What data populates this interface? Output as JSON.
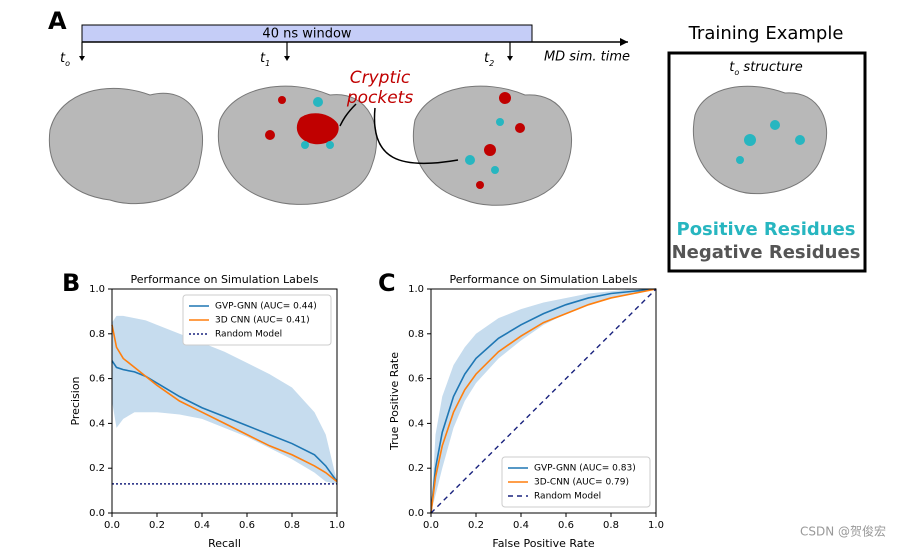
{
  "panel_a": {
    "label": "A",
    "window": "40 ns window",
    "t0": {
      "main": "t",
      "sub": "o"
    },
    "t1": {
      "main": "t",
      "sub": "1"
    },
    "t2": {
      "main": "t",
      "sub": "2"
    },
    "axis": "MD sim. time",
    "callout": [
      "Cryptic",
      "pockets"
    ],
    "training": {
      "title": "Training Example",
      "structure": {
        "main": "t",
        "sub": "o",
        "rest": " structure"
      },
      "positive": "Positive Residues",
      "negative": "Negative Residues"
    }
  },
  "watermark": "CSDN @贺俊宏",
  "chart_data": [
    {
      "type": "line",
      "panel": "B",
      "title": "Performance on Simulation Labels",
      "xlabel": "Recall",
      "ylabel": "Precision",
      "xlim": [
        0,
        1
      ],
      "ylim": [
        0,
        1
      ],
      "xticks": [
        {
          "value": 0,
          "label": "0.0"
        },
        {
          "value": 0.2,
          "label": "0.2"
        },
        {
          "value": 0.4,
          "label": "0.4"
        },
        {
          "value": 0.6,
          "label": "0.6"
        },
        {
          "value": 0.8,
          "label": "0.8"
        },
        {
          "value": 1,
          "label": "1.0"
        }
      ],
      "yticks": [
        {
          "value": 0,
          "label": "0.0"
        },
        {
          "value": 0.2,
          "label": "0.2"
        },
        {
          "value": 0.4,
          "label": "0.4"
        },
        {
          "value": 0.6,
          "label": "0.6"
        },
        {
          "value": 0.8,
          "label": "0.8"
        },
        {
          "value": 1,
          "label": "1.0"
        }
      ],
      "legend": "upper right",
      "band_color": "#c6dcee",
      "band_x": [
        0,
        0.02,
        0.05,
        0.1,
        0.15,
        0.2,
        0.3,
        0.4,
        0.5,
        0.6,
        0.7,
        0.8,
        0.9,
        0.95,
        1
      ],
      "band_upper": [
        0.85,
        0.88,
        0.88,
        0.87,
        0.86,
        0.84,
        0.8,
        0.76,
        0.72,
        0.67,
        0.62,
        0.56,
        0.45,
        0.35,
        0.14
      ],
      "band_lower": [
        0.5,
        0.38,
        0.42,
        0.45,
        0.45,
        0.45,
        0.44,
        0.42,
        0.38,
        0.34,
        0.29,
        0.24,
        0.18,
        0.14,
        0.13
      ],
      "series": [
        {
          "name": "GVP-GNN (AUC= 0.44)",
          "color": "#1f77b4",
          "x": [
            0,
            0.02,
            0.05,
            0.1,
            0.15,
            0.2,
            0.3,
            0.4,
            0.5,
            0.6,
            0.7,
            0.8,
            0.9,
            0.95,
            1
          ],
          "values": [
            0.68,
            0.65,
            0.64,
            0.63,
            0.61,
            0.58,
            0.52,
            0.47,
            0.43,
            0.39,
            0.35,
            0.31,
            0.26,
            0.21,
            0.14
          ]
        },
        {
          "name": "3D CNN (AUC= 0.41)",
          "color": "#ff7f0e",
          "x": [
            0,
            0.02,
            0.05,
            0.1,
            0.15,
            0.2,
            0.3,
            0.4,
            0.5,
            0.6,
            0.7,
            0.8,
            0.9,
            0.95,
            1
          ],
          "values": [
            0.84,
            0.74,
            0.69,
            0.65,
            0.61,
            0.57,
            0.5,
            0.45,
            0.4,
            0.35,
            0.3,
            0.26,
            0.21,
            0.18,
            0.14
          ]
        },
        {
          "name": "Random Model",
          "color": "#1a237e",
          "dash": "2,2",
          "x": [
            0,
            1
          ],
          "values": [
            0.13,
            0.13
          ]
        }
      ]
    },
    {
      "type": "line",
      "panel": "C",
      "title": "Performance on Simulation Labels",
      "xlabel": "False Positive Rate",
      "ylabel": "True Positive Rate",
      "xlim": [
        0,
        1
      ],
      "ylim": [
        0,
        1
      ],
      "xticks": [
        {
          "value": 0,
          "label": "0.0"
        },
        {
          "value": 0.2,
          "label": "0.2"
        },
        {
          "value": 0.4,
          "label": "0.4"
        },
        {
          "value": 0.6,
          "label": "0.6"
        },
        {
          "value": 0.8,
          "label": "0.8"
        },
        {
          "value": 1,
          "label": "1.0"
        }
      ],
      "yticks": [
        {
          "value": 0,
          "label": "0.0"
        },
        {
          "value": 0.2,
          "label": "0.2"
        },
        {
          "value": 0.4,
          "label": "0.4"
        },
        {
          "value": 0.6,
          "label": "0.6"
        },
        {
          "value": 0.8,
          "label": "0.8"
        },
        {
          "value": 1,
          "label": "1.0"
        }
      ],
      "legend": "lower right",
      "band_color": "#c6dcee",
      "band_x": [
        0,
        0.02,
        0.05,
        0.1,
        0.15,
        0.2,
        0.3,
        0.4,
        0.5,
        0.6,
        0.7,
        0.8,
        0.9,
        1
      ],
      "band_upper": [
        0,
        0.35,
        0.52,
        0.66,
        0.74,
        0.8,
        0.87,
        0.91,
        0.94,
        0.96,
        0.98,
        0.99,
        1,
        1
      ],
      "band_lower": [
        0,
        0.08,
        0.2,
        0.38,
        0.5,
        0.58,
        0.69,
        0.77,
        0.84,
        0.89,
        0.93,
        0.96,
        0.98,
        1
      ],
      "series": [
        {
          "name": "GVP-GNN (AUC= 0.83)",
          "color": "#1f77b4",
          "x": [
            0,
            0.02,
            0.05,
            0.1,
            0.15,
            0.2,
            0.3,
            0.4,
            0.5,
            0.6,
            0.7,
            0.8,
            0.9,
            1
          ],
          "values": [
            0,
            0.2,
            0.36,
            0.52,
            0.62,
            0.69,
            0.78,
            0.84,
            0.89,
            0.93,
            0.96,
            0.98,
            0.99,
            1
          ]
        },
        {
          "name": "3D-CNN (AUC= 0.79)",
          "color": "#ff7f0e",
          "x": [
            0,
            0.02,
            0.05,
            0.1,
            0.15,
            0.2,
            0.3,
            0.4,
            0.5,
            0.6,
            0.7,
            0.8,
            0.9,
            1
          ],
          "values": [
            0,
            0.16,
            0.3,
            0.45,
            0.55,
            0.62,
            0.72,
            0.79,
            0.85,
            0.89,
            0.93,
            0.96,
            0.98,
            1
          ]
        },
        {
          "name": "Random Model",
          "color": "#1a237e",
          "dash": "5,4",
          "x": [
            0,
            1
          ],
          "values": [
            0,
            1
          ]
        }
      ]
    }
  ]
}
